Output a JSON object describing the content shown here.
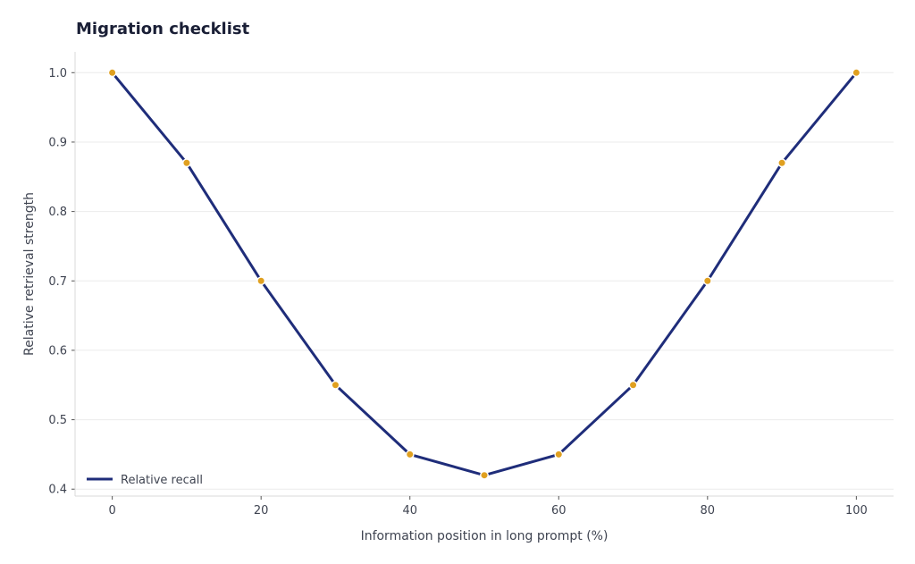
{
  "chart_data": {
    "type": "line",
    "title": "Migration checklist",
    "xlabel": "Information position in long prompt (%)",
    "ylabel": "Relative retrieval strength",
    "xlim": [
      -5,
      105
    ],
    "ylim": [
      0.39,
      1.03
    ],
    "xticks": [
      0,
      20,
      40,
      60,
      80,
      100
    ],
    "yticks": [
      0.4,
      0.5,
      0.6,
      0.7,
      0.8,
      0.9,
      1.0
    ],
    "grid": "horizontal",
    "legend_position": "bottom-left",
    "series": [
      {
        "name": "Relative recall",
        "color": "#1f2d7a",
        "marker_color": "#e0a020",
        "x": [
          0,
          10,
          20,
          30,
          40,
          50,
          60,
          70,
          80,
          90,
          100
        ],
        "y": [
          1.0,
          0.87,
          0.7,
          0.55,
          0.45,
          0.42,
          0.45,
          0.55,
          0.7,
          0.87,
          1.0
        ]
      }
    ]
  }
}
